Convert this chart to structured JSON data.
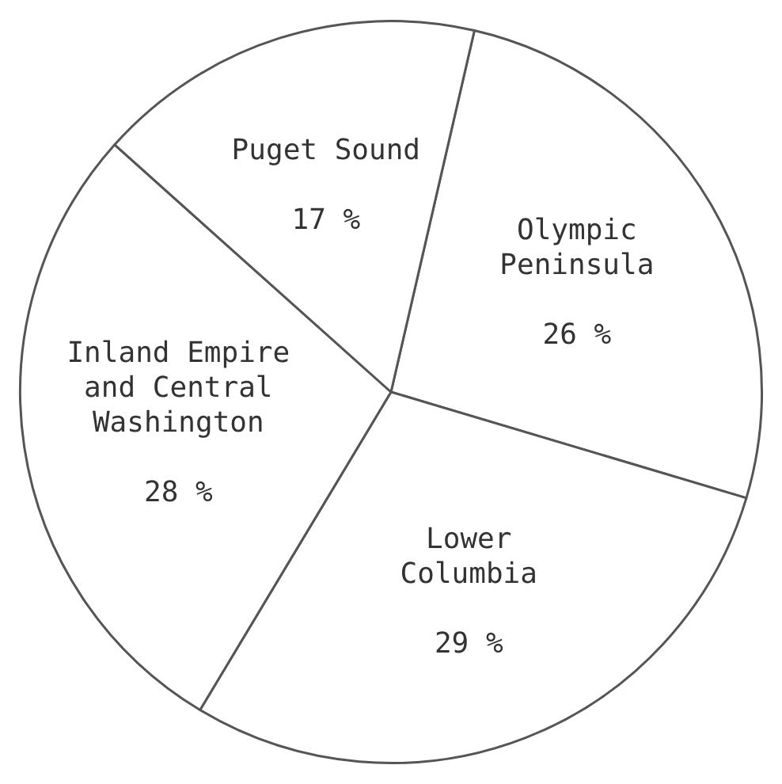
{
  "chart_data": {
    "type": "pie",
    "categories": [
      "Olympic Peninsula",
      "Lower Columbia",
      "Inland Empire and Central Washington",
      "Puget Sound"
    ],
    "values": [
      26,
      29,
      28,
      17
    ],
    "colors": [
      "#ffffff",
      "#ffffff",
      "#ffffff",
      "#ffffff"
    ],
    "value_labels": [
      "26 %",
      "29 %",
      "28 %",
      "17 %"
    ],
    "legend": false
  }
}
